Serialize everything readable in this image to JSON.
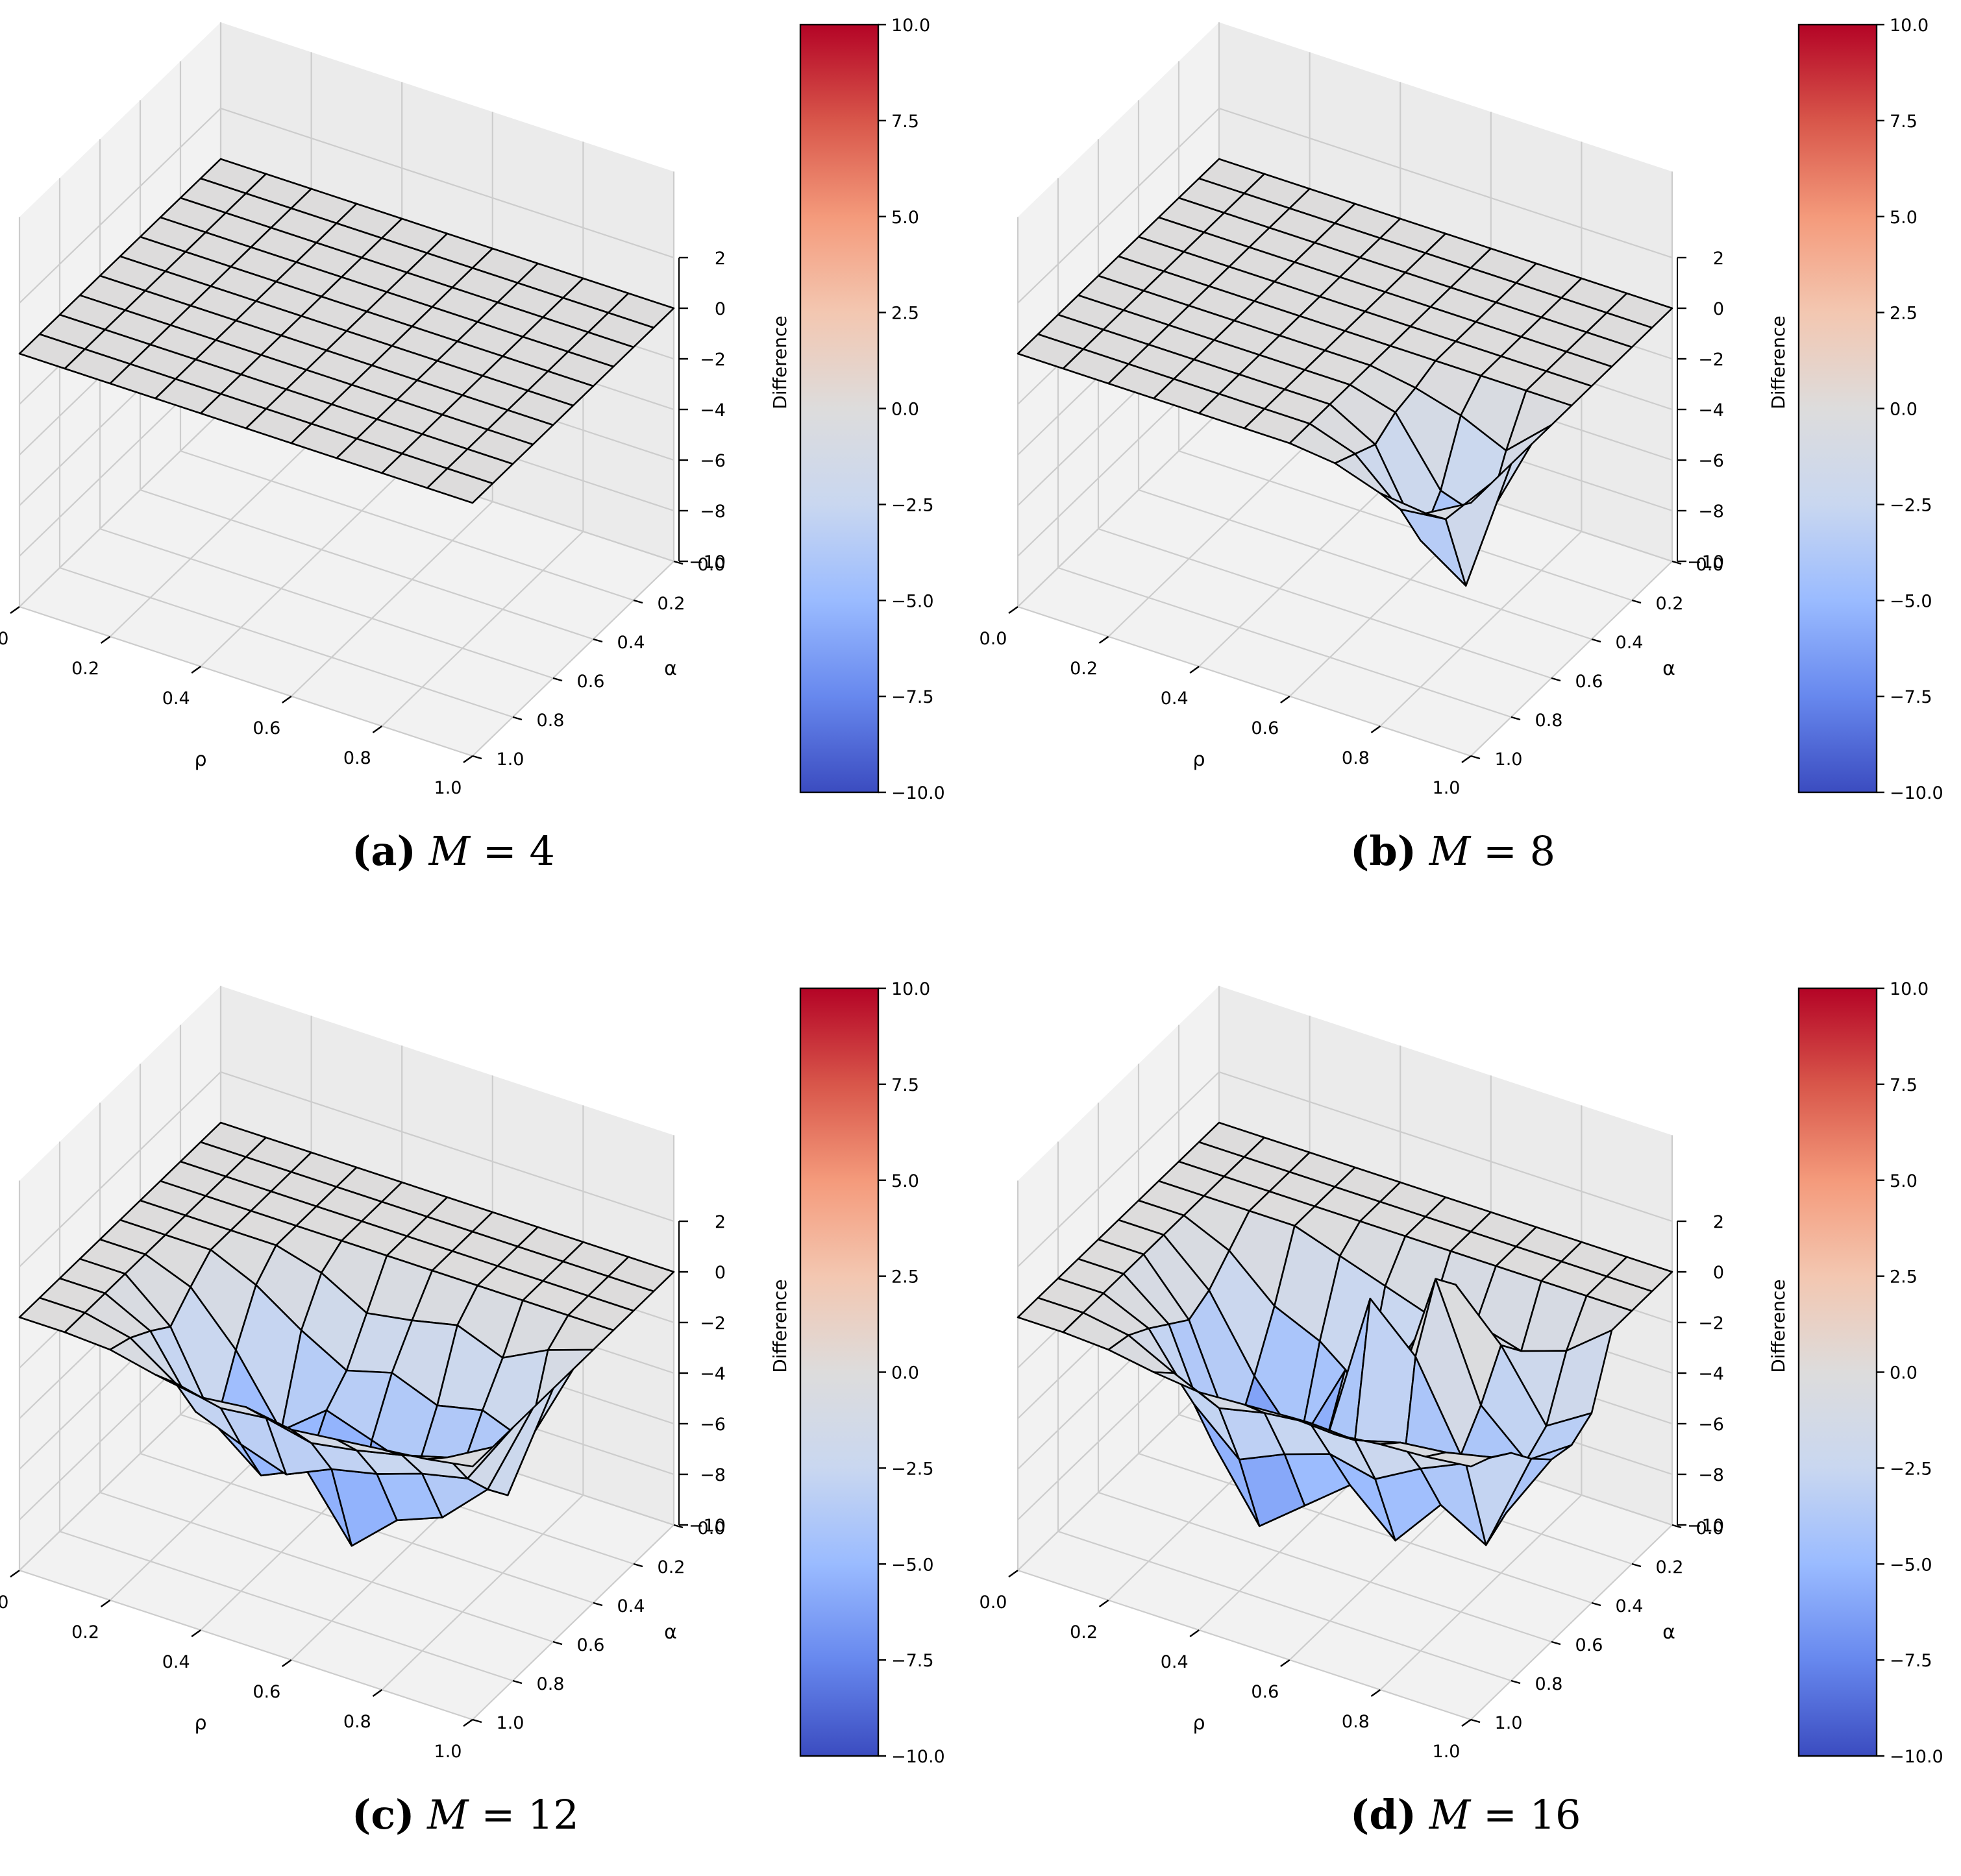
{
  "figure": {
    "colormap_stops": [
      "#3b4cc0",
      "#6788ee",
      "#9abbff",
      "#c9d7f0",
      "#dddcdc",
      "#f3c7b1",
      "#f49a7b",
      "#d8564a",
      "#b40426"
    ],
    "edge_color": "#000000",
    "pane_color": "#f2f2f2",
    "grid_color": "#cccccc"
  },
  "chart_data": [
    {
      "type": "surface3d",
      "caption_label": "(a)",
      "caption_var": "M",
      "caption_eq": " = 4",
      "xlabel": "ρ",
      "ylabel": "α",
      "zlabel": "",
      "colorbar_label": "Difference",
      "xlim": [
        0,
        1
      ],
      "ylim": [
        0,
        1
      ],
      "zlim": [
        -10,
        2
      ],
      "clim": [
        -10,
        10
      ],
      "x_ticks": [
        "0.0",
        "0.2",
        "0.4",
        "0.6",
        "0.8",
        "1.0"
      ],
      "y_ticks": [
        "0.0",
        "0.2",
        "0.4",
        "0.6",
        "0.8",
        "1.0"
      ],
      "z_ticks": [
        "2",
        "0",
        "−2",
        "−4",
        "−6",
        "−8",
        "−10"
      ],
      "colorbar_ticks": [
        "10.0",
        "7.5",
        "5.0",
        "2.5",
        "0.0",
        "−2.5",
        "−5.0",
        "−7.5",
        "−10.0"
      ],
      "grid": true,
      "x": [
        0,
        0.1,
        0.2,
        0.3,
        0.4,
        0.5,
        0.6,
        0.7,
        0.8,
        0.9,
        1.0
      ],
      "y": [
        0,
        0.1,
        0.2,
        0.3,
        0.4,
        0.5,
        0.6,
        0.7,
        0.8,
        0.9,
        1.0
      ],
      "z": [
        [
          0,
          0,
          0,
          0,
          0,
          0,
          0,
          0,
          0,
          0,
          0
        ],
        [
          0,
          0,
          0,
          0,
          0,
          0,
          0,
          0,
          0,
          0,
          0
        ],
        [
          0,
          0,
          0,
          0,
          0,
          0,
          0,
          0,
          0,
          0,
          0
        ],
        [
          0,
          0,
          0,
          0,
          0,
          0,
          0,
          0,
          0,
          0,
          0
        ],
        [
          0,
          0,
          0,
          0,
          0,
          0,
          0,
          0,
          0,
          0,
          0
        ],
        [
          0,
          0,
          0,
          0,
          0,
          0,
          0,
          0,
          0,
          0,
          0
        ],
        [
          0,
          0,
          0,
          0,
          0,
          0,
          0,
          0,
          0,
          0,
          0
        ],
        [
          0,
          0,
          0,
          0,
          0,
          0,
          0,
          0,
          0,
          0,
          0
        ],
        [
          0,
          0,
          0,
          0,
          0,
          0,
          0,
          0,
          0,
          0,
          0
        ],
        [
          0,
          0,
          0,
          0,
          0,
          0,
          0,
          0,
          0,
          0,
          0
        ],
        [
          0,
          0,
          0,
          0,
          0,
          0,
          0,
          0,
          0,
          0,
          0
        ]
      ]
    },
    {
      "type": "surface3d",
      "caption_label": "(b)",
      "caption_var": "M",
      "caption_eq": " = 8",
      "xlabel": "ρ",
      "ylabel": "α",
      "zlabel": "",
      "colorbar_label": "Difference",
      "xlim": [
        0,
        1
      ],
      "ylim": [
        0,
        1
      ],
      "zlim": [
        -10,
        2
      ],
      "clim": [
        -10,
        10
      ],
      "x_ticks": [
        "0.0",
        "0.2",
        "0.4",
        "0.6",
        "0.8",
        "1.0"
      ],
      "y_ticks": [
        "0.0",
        "0.2",
        "0.4",
        "0.6",
        "0.8",
        "1.0"
      ],
      "z_ticks": [
        "2",
        "0",
        "−2",
        "−4",
        "−6",
        "−8",
        "−10"
      ],
      "colorbar_ticks": [
        "10.0",
        "7.5",
        "5.0",
        "2.5",
        "0.0",
        "−2.5",
        "−5.0",
        "−7.5",
        "−10.0"
      ],
      "grid": true,
      "x": [
        0,
        0.1,
        0.2,
        0.3,
        0.4,
        0.5,
        0.6,
        0.7,
        0.8,
        0.9,
        1.0
      ],
      "y": [
        0,
        0.1,
        0.2,
        0.3,
        0.4,
        0.5,
        0.6,
        0.7,
        0.8,
        0.9,
        1.0
      ],
      "z": [
        [
          0,
          0,
          0,
          0,
          0,
          0,
          0,
          0,
          0,
          0,
          0
        ],
        [
          0,
          0,
          0,
          0,
          0,
          0,
          0,
          0,
          0,
          0,
          0
        ],
        [
          0,
          0,
          0,
          0,
          0,
          0,
          0,
          0,
          0,
          0,
          0
        ],
        [
          0,
          0,
          0,
          0,
          0,
          0,
          0,
          0,
          0,
          0,
          0
        ],
        [
          0,
          0,
          0,
          0,
          0,
          0,
          0,
          0,
          0,
          0,
          0
        ],
        [
          0,
          0,
          0,
          0,
          0,
          0,
          0,
          0,
          0,
          0,
          0
        ],
        [
          0,
          0,
          0,
          0,
          0,
          0,
          0,
          -0.3,
          -0.8,
          -1.6,
          0
        ],
        [
          0,
          0,
          0,
          0,
          0,
          0,
          0,
          -0.5,
          -3.0,
          -3.6,
          0
        ],
        [
          0,
          0,
          0,
          0,
          0,
          0,
          0,
          -1.0,
          -4.2,
          -5.4,
          0
        ],
        [
          0,
          0,
          0,
          0,
          0,
          0,
          0,
          -0.6,
          -2.2,
          -2.0,
          0
        ],
        [
          0,
          0,
          0,
          0,
          0,
          0,
          0,
          -0.2,
          -0.8,
          -1.0,
          0
        ]
      ]
    },
    {
      "type": "surface3d",
      "caption_label": "(c)",
      "caption_var": "M",
      "caption_eq": " = 12",
      "xlabel": "ρ",
      "ylabel": "α",
      "zlabel": "",
      "colorbar_label": "Difference",
      "xlim": [
        0,
        1
      ],
      "ylim": [
        0,
        1
      ],
      "zlim": [
        -10,
        2
      ],
      "clim": [
        -10,
        10
      ],
      "x_ticks": [
        "0.0",
        "0.2",
        "0.4",
        "0.6",
        "0.8",
        "1.0"
      ],
      "y_ticks": [
        "0.0",
        "0.2",
        "0.4",
        "0.6",
        "0.8",
        "1.0"
      ],
      "z_ticks": [
        "2",
        "0",
        "−2",
        "−4",
        "−6",
        "−8",
        "−10"
      ],
      "colorbar_ticks": [
        "10.0",
        "7.5",
        "5.0",
        "2.5",
        "0.0",
        "−2.5",
        "−5.0",
        "−7.5",
        "−10.0"
      ],
      "grid": true,
      "x": [
        0,
        0.1,
        0.2,
        0.3,
        0.4,
        0.5,
        0.6,
        0.7,
        0.8,
        0.9,
        1.0
      ],
      "y": [
        0,
        0.1,
        0.2,
        0.3,
        0.4,
        0.5,
        0.6,
        0.7,
        0.8,
        0.9,
        1.0
      ],
      "z": [
        [
          0,
          0,
          0,
          0,
          0,
          0,
          0,
          0,
          0,
          0,
          0
        ],
        [
          0,
          0,
          0,
          0,
          0,
          0,
          0,
          0,
          0,
          0,
          0
        ],
        [
          0,
          0,
          0,
          0,
          0,
          0,
          0,
          0,
          0,
          0,
          0
        ],
        [
          0,
          0,
          0,
          0,
          0,
          0,
          0,
          0,
          0,
          0,
          0
        ],
        [
          0,
          0,
          0,
          0,
          -0.5,
          -1.5,
          -1.2,
          -0.8,
          -1.5,
          -0.6,
          0
        ],
        [
          0,
          0,
          0,
          -0.8,
          -2.0,
          -3.0,
          -2.5,
          -3.2,
          -2.8,
          -3.5,
          0
        ],
        [
          0,
          0,
          -0.7,
          -2.6,
          -5.2,
          -3.8,
          -4.4,
          -5.0,
          -4.3,
          -4.8,
          0
        ],
        [
          0,
          0,
          -1.5,
          -4.8,
          -6.2,
          -5.4,
          -7.8,
          -6.2,
          -5.5,
          -3.8,
          0
        ],
        [
          0,
          0,
          -0.9,
          -3.5,
          -4.2,
          -4.8,
          -4.0,
          -3.6,
          -3.0,
          -2.6,
          0
        ],
        [
          0,
          0,
          -0.4,
          -1.6,
          -2.0,
          -1.8,
          -2.2,
          -1.9,
          -1.5,
          -1.0,
          0
        ],
        [
          0,
          0,
          -0.1,
          -0.5,
          -0.8,
          -0.6,
          -0.9,
          -0.7,
          -0.5,
          -0.3,
          0
        ]
      ]
    },
    {
      "type": "surface3d",
      "caption_label": "(d)",
      "caption_var": "M",
      "caption_eq": " = 16",
      "xlabel": "ρ",
      "ylabel": "α",
      "zlabel": "",
      "colorbar_label": "Difference",
      "xlim": [
        0,
        1
      ],
      "ylim": [
        0,
        1
      ],
      "zlim": [
        -10,
        2
      ],
      "clim": [
        -10,
        10
      ],
      "x_ticks": [
        "0.0",
        "0.2",
        "0.4",
        "0.6",
        "0.8",
        "1.0"
      ],
      "y_ticks": [
        "0.0",
        "0.2",
        "0.4",
        "0.6",
        "0.8",
        "1.0"
      ],
      "z_ticks": [
        "2",
        "0",
        "−2",
        "−4",
        "−6",
        "−8",
        "−10"
      ],
      "colorbar_ticks": [
        "10.0",
        "7.5",
        "5.0",
        "2.5",
        "0.0",
        "−2.5",
        "−5.0",
        "−7.5",
        "−10.0"
      ],
      "grid": true,
      "x": [
        0,
        0.1,
        0.2,
        0.3,
        0.4,
        0.5,
        0.6,
        0.7,
        0.8,
        0.9,
        1.0
      ],
      "y": [
        0,
        0.1,
        0.2,
        0.3,
        0.4,
        0.5,
        0.6,
        0.7,
        0.8,
        0.9,
        1.0
      ],
      "z": [
        [
          0,
          0,
          0,
          0,
          0,
          0,
          0,
          0,
          0,
          0,
          0
        ],
        [
          0,
          0,
          0,
          0,
          0,
          0,
          0,
          0,
          0,
          0,
          0
        ],
        [
          0,
          0,
          0,
          0,
          0,
          0,
          0,
          0,
          0,
          0,
          0
        ],
        [
          0,
          0,
          0,
          0,
          -0.6,
          -1.2,
          -1.8,
          -1.5,
          -2.0,
          -1.4,
          0
        ],
        [
          0,
          0,
          -0.8,
          -2.4,
          -3.2,
          -4.6,
          -2.2,
          0.8,
          -1.0,
          -3.6,
          -2.5
        ],
        [
          0,
          0,
          -1.6,
          -4.4,
          -6.5,
          -3.0,
          -4.0,
          1.8,
          -2.6,
          -4.2,
          -3.0
        ],
        [
          0,
          0,
          -2.0,
          -6.2,
          -7.6,
          -5.2,
          1.2,
          -0.5,
          -3.8,
          -5.5,
          -2.8
        ],
        [
          0,
          0,
          -1.4,
          -5.6,
          -8.2,
          -6.8,
          -5.4,
          -7.0,
          -5.0,
          -6.0,
          -2.0
        ],
        [
          0,
          0,
          -0.8,
          -3.2,
          -4.8,
          -4.0,
          -3.4,
          -3.8,
          -2.8,
          -2.0,
          -1.0
        ],
        [
          0,
          0,
          -0.3,
          -1.2,
          -2.0,
          -1.6,
          -1.4,
          -1.5,
          -1.0,
          -0.8,
          -0.4
        ],
        [
          0,
          0,
          -0.1,
          -0.4,
          -0.6,
          -0.5,
          -0.4,
          -0.5,
          -0.3,
          -0.2,
          0
        ]
      ]
    }
  ]
}
